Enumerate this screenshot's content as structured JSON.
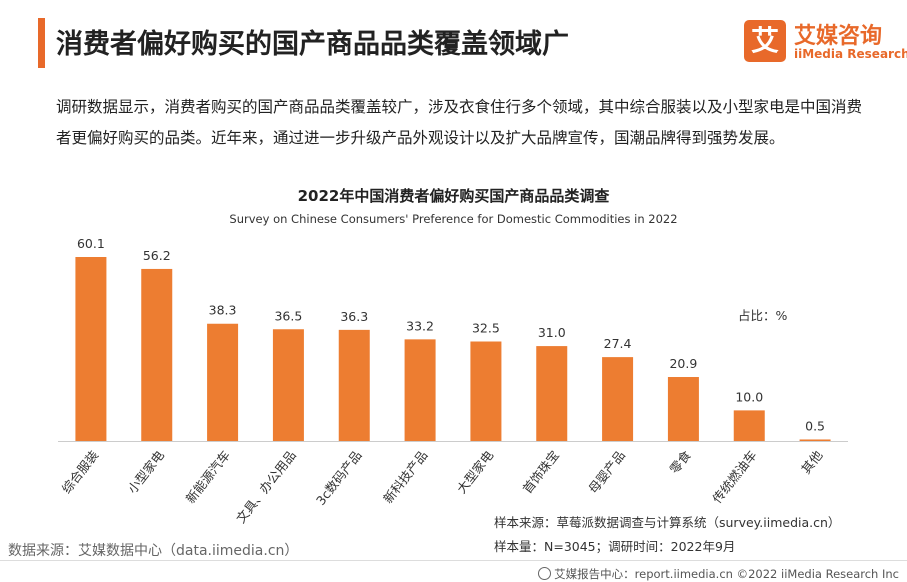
{
  "header": {
    "title": "消费者偏好购买的国产商品品类覆盖领域广",
    "logo_mark": "艾",
    "logo_cn": "艾媒咨询",
    "logo_en": "iiMedia Research"
  },
  "intro": "调研数据显示，消费者购买的国产商品品类覆盖较广，涉及衣食住行多个领域，其中综合服装以及小型家电是中国消费者更偏好购买的品类。近年来，通过进一步升级产品外观设计以及扩大品牌宣传，国潮品牌得到强势发展。",
  "chart_data": {
    "type": "bar",
    "title": "2022年中国消费者偏好购买国产商品品类调查",
    "subtitle": "Survey on Chinese Consumers' Preference for Domestic Commodities in 2022",
    "unit_label": "占比：%",
    "categories": [
      "综合服装",
      "小型家电",
      "新能源汽车",
      "文具、办公用品",
      "3c数码产品",
      "新科技产品",
      "大型家电",
      "首饰珠宝",
      "母婴产品",
      "零食",
      "传统燃油车",
      "其他"
    ],
    "values": [
      60.1,
      56.2,
      38.3,
      36.5,
      36.3,
      33.2,
      32.5,
      31.0,
      27.4,
      20.9,
      10.0,
      0.5
    ],
    "value_labels": [
      "60.1",
      "56.2",
      "38.3",
      "36.5",
      "36.3",
      "33.2",
      "32.5",
      "31.0",
      "27.4",
      "20.9",
      "10.0",
      "0.5"
    ],
    "ylim": [
      0,
      70
    ],
    "bar_color": "#ed7d31",
    "grid": false,
    "legend": "none"
  },
  "notes": {
    "sample_source": "样本来源：草莓派数据调查与计算系统（survey.iimedia.cn）",
    "sample_size": "样本量：N=3045；调研时间：2022年9月",
    "data_source": "数据来源：艾媒数据中心（data.iimedia.cn）"
  },
  "footer": {
    "text": "艾媒报告中心：report.iimedia.cn  ©2022  iiMedia Research  Inc"
  },
  "colors": {
    "accent": "#e8692a",
    "bar": "#ed7d31"
  }
}
